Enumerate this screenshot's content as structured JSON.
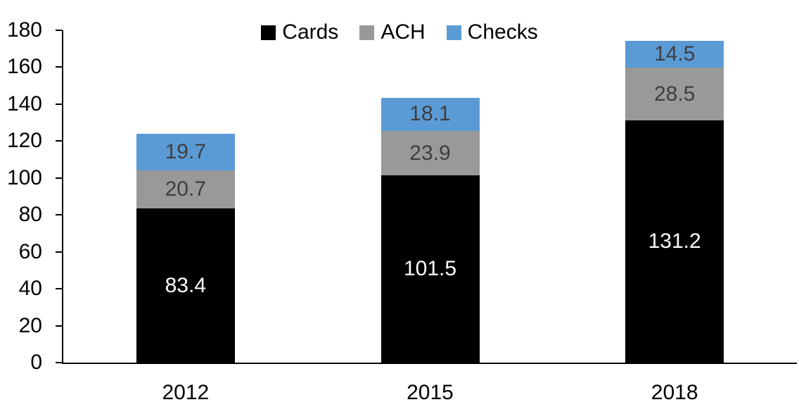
{
  "chart_data": {
    "type": "bar",
    "stacked": true,
    "title": "",
    "xlabel": "",
    "ylabel": "",
    "categories": [
      "2012",
      "2015",
      "2018"
    ],
    "series": [
      {
        "name": "Cards",
        "color": "#000000",
        "label_color": "#ffffff",
        "values": [
          83.4,
          101.5,
          131.2
        ]
      },
      {
        "name": "ACH",
        "color": "#999999",
        "label_color": "#3f3f3f",
        "values": [
          20.7,
          23.9,
          28.5
        ]
      },
      {
        "name": "Checks",
        "color": "#5b9bd5",
        "label_color": "#3f3f3f",
        "values": [
          19.7,
          18.1,
          14.5
        ]
      }
    ],
    "ylim": [
      0,
      180
    ],
    "yticks": [
      0,
      20,
      40,
      60,
      80,
      100,
      120,
      140,
      160,
      180
    ],
    "grid": false,
    "data_labels": true,
    "legend": {
      "position": "top-center",
      "entries": [
        "Cards",
        "ACH",
        "Checks"
      ]
    },
    "axis_color": "#000000"
  }
}
